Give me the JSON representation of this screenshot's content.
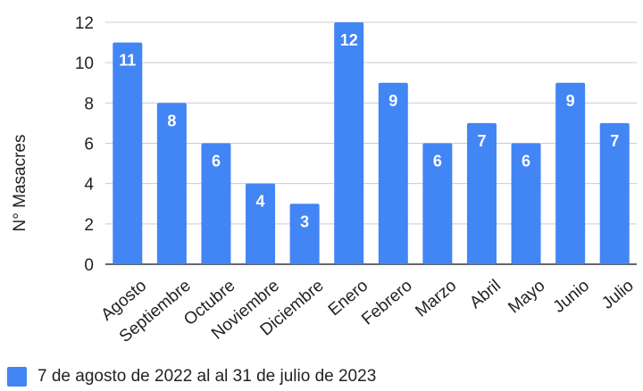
{
  "chart_data": {
    "type": "bar",
    "categories": [
      "Agosto",
      "Septiembre",
      "Octubre",
      "Noviembre",
      "Diciembre",
      "Enero",
      "Febrero",
      "Marzo",
      "Abril",
      "Mayo",
      "Junio",
      "Julio"
    ],
    "series": [
      {
        "name": "7 de agosto de 2022 al al 31 de julio de 2023",
        "values": [
          11,
          8,
          6,
          4,
          3,
          12,
          9,
          6,
          7,
          6,
          9,
          7
        ]
      }
    ],
    "ylabel": "N° Masacres",
    "xlabel": "",
    "ylim": [
      0,
      12
    ],
    "yticks": [
      0,
      2,
      4,
      6,
      8,
      10,
      12
    ],
    "grid": true,
    "data_labels": true,
    "legend_position": "bottom-left",
    "bar_color": "#4285f4"
  }
}
